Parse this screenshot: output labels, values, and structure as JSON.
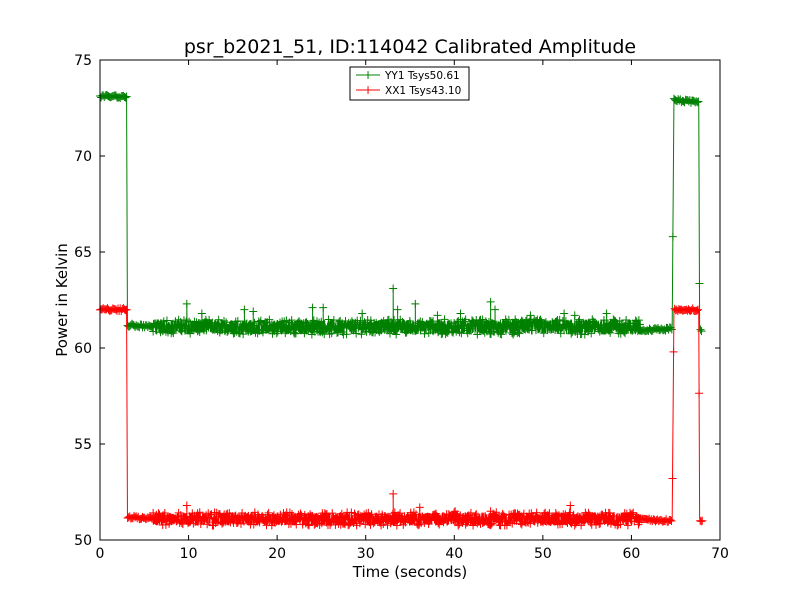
{
  "chart_data": {
    "type": "line",
    "title": "psr_b2021_51, ID:114042 Calibrated Amplitude",
    "xlabel": "Time (seconds)",
    "ylabel": "Power in Kelvin",
    "xlim": [
      0,
      70
    ],
    "ylim": [
      50,
      75
    ],
    "xticks": [
      "0",
      "10",
      "20",
      "30",
      "40",
      "50",
      "60",
      "70"
    ],
    "yticks": [
      "50",
      "55",
      "60",
      "65",
      "70",
      "75"
    ],
    "grid": false,
    "legend_position": "top-center",
    "series": [
      {
        "name": "YY1 Tsys50.61",
        "color": "#008000",
        "marker": "+",
        "x": [
          0.0,
          3.0,
          3.1,
          6.0,
          10.0,
          20.0,
          30.0,
          40.0,
          50.0,
          60.0,
          64.6,
          64.8,
          65.2,
          67.6,
          67.7,
          68.0
        ],
        "y": [
          73.1,
          73.1,
          61.2,
          61.1,
          61.2,
          61.1,
          61.1,
          61.1,
          61.1,
          60.9,
          61.0,
          73.0,
          72.9,
          72.8,
          61.0,
          60.9
        ],
        "noisy_segment": {
          "x_range": [
            6.0,
            61.0
          ],
          "mean": 61.1,
          "amplitude": 0.4
        },
        "spikes": [
          {
            "x": 9.8,
            "y": 62.3
          },
          {
            "x": 11.5,
            "y": 61.8
          },
          {
            "x": 16.3,
            "y": 62.0
          },
          {
            "x": 17.3,
            "y": 61.9
          },
          {
            "x": 24.0,
            "y": 62.1
          },
          {
            "x": 25.2,
            "y": 62.1
          },
          {
            "x": 29.6,
            "y": 61.8
          },
          {
            "x": 33.1,
            "y": 63.1
          },
          {
            "x": 33.6,
            "y": 62.0
          },
          {
            "x": 35.6,
            "y": 62.3
          },
          {
            "x": 38.1,
            "y": 61.7
          },
          {
            "x": 40.7,
            "y": 61.8
          },
          {
            "x": 44.1,
            "y": 62.4
          },
          {
            "x": 44.6,
            "y": 62.0
          },
          {
            "x": 48.6,
            "y": 61.7
          },
          {
            "x": 52.4,
            "y": 61.8
          },
          {
            "x": 53.6,
            "y": 61.7
          },
          {
            "x": 57.2,
            "y": 61.8
          }
        ]
      },
      {
        "name": "XX1 Tsys43.10",
        "color": "#ff0000",
        "marker": "+",
        "x": [
          0.0,
          3.0,
          3.1,
          6.0,
          10.0,
          20.0,
          30.0,
          40.0,
          50.0,
          60.0,
          64.6,
          64.8,
          65.2,
          67.6,
          67.7,
          68.0
        ],
        "y": [
          62.0,
          62.0,
          51.2,
          51.1,
          51.2,
          51.1,
          51.1,
          51.1,
          51.1,
          51.1,
          51.0,
          62.0,
          62.0,
          62.0,
          51.1,
          51.0
        ],
        "noisy_segment": {
          "x_range": [
            6.0,
            61.0
          ],
          "mean": 51.1,
          "amplitude": 0.35
        },
        "spikes": [
          {
            "x": 9.8,
            "y": 51.8
          },
          {
            "x": 14.6,
            "y": 51.4
          },
          {
            "x": 25.1,
            "y": 51.4
          },
          {
            "x": 33.1,
            "y": 52.4
          },
          {
            "x": 36.1,
            "y": 51.7
          },
          {
            "x": 40.1,
            "y": 51.5
          },
          {
            "x": 44.1,
            "y": 51.5
          },
          {
            "x": 53.1,
            "y": 51.8
          }
        ]
      }
    ]
  }
}
